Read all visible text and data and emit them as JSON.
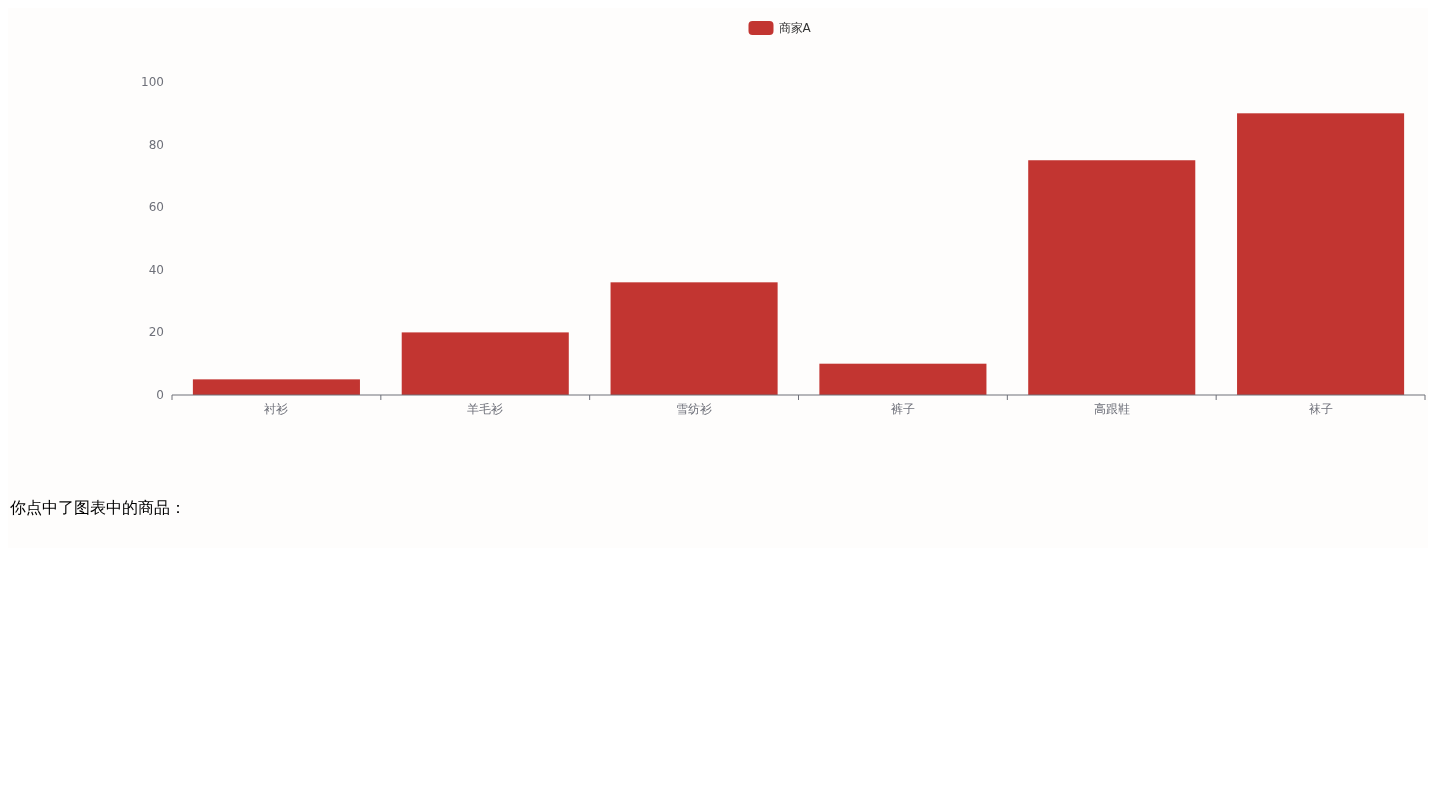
{
  "chart_data": {
    "type": "bar",
    "categories": [
      "衬衫",
      "羊毛衫",
      "雪纺衫",
      "裤子",
      "高跟鞋",
      "袜子"
    ],
    "series": [
      {
        "name": "商家A",
        "color": "#c23531",
        "values": [
          5,
          20,
          36,
          10,
          75,
          90
        ]
      }
    ],
    "ylim": [
      0,
      100
    ],
    "yticks": [
      0,
      20,
      40,
      60,
      80,
      100
    ],
    "legend": "top",
    "annotations": [
      "你点中了图表中的商品："
    ]
  }
}
